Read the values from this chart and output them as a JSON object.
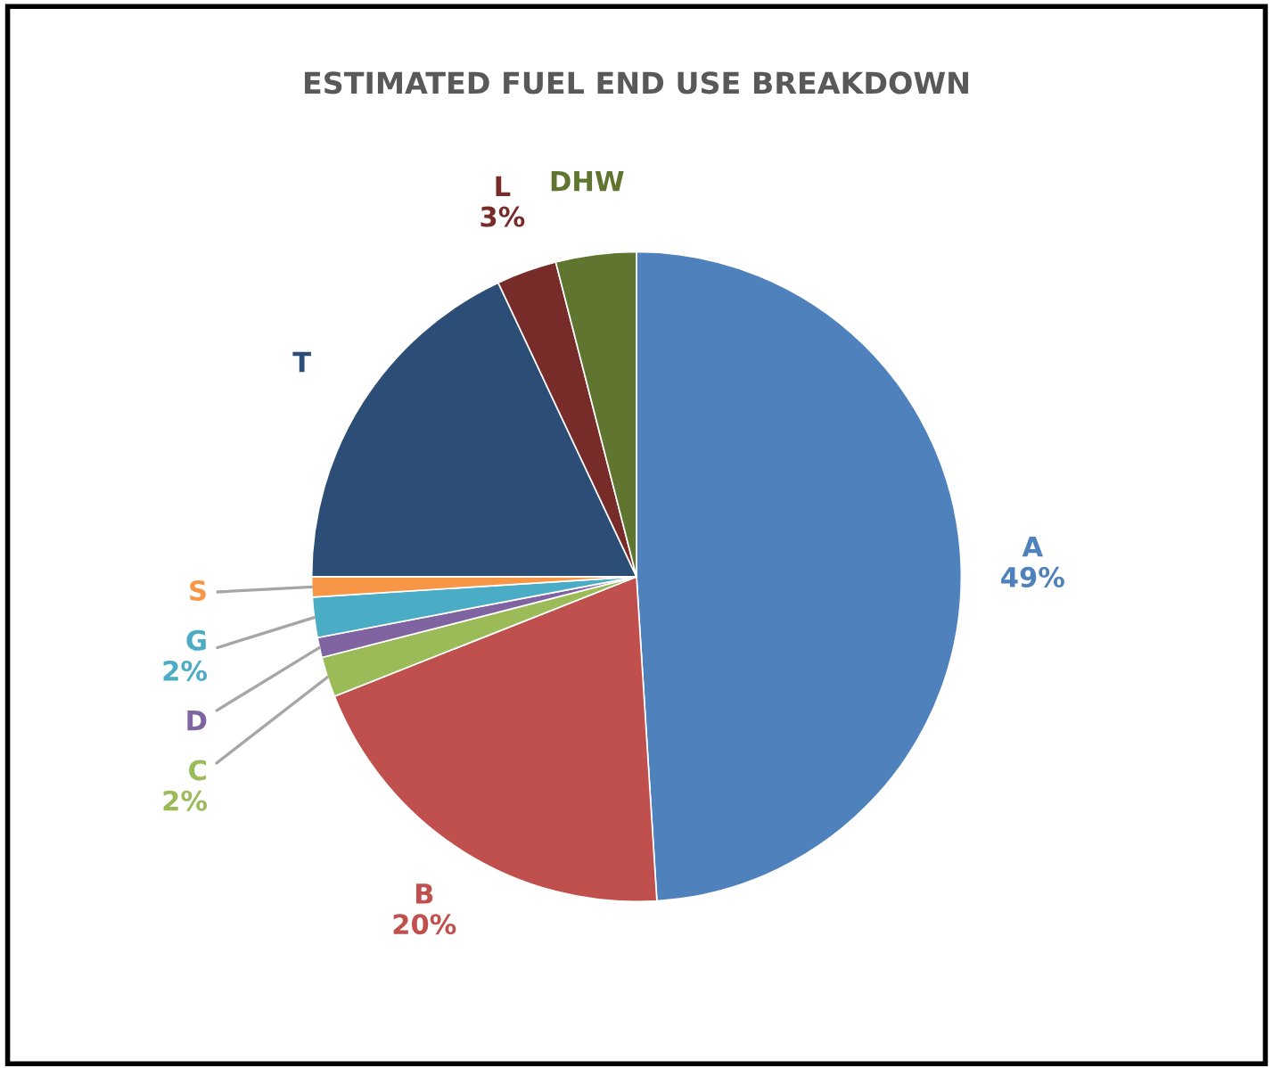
{
  "chart_data": {
    "type": "pie",
    "title": "ESTIMATED FUEL END USE BREAKDOWN",
    "categories": [
      "A",
      "B",
      "C",
      "D",
      "G",
      "S",
      "T",
      "L",
      "DHW"
    ],
    "values": [
      49,
      20,
      2,
      1,
      2,
      1,
      18,
      3,
      4
    ],
    "value_labels": [
      "49%",
      "20%",
      "2%",
      null,
      "2%",
      null,
      null,
      "3%",
      null
    ],
    "colors": [
      "#4f81bd",
      "#c0504d",
      "#9bbb59",
      "#8064a2",
      "#4bacc6",
      "#f79646",
      "#2c4d75",
      "#772c2a",
      "#5f7530"
    ],
    "legend": false
  }
}
